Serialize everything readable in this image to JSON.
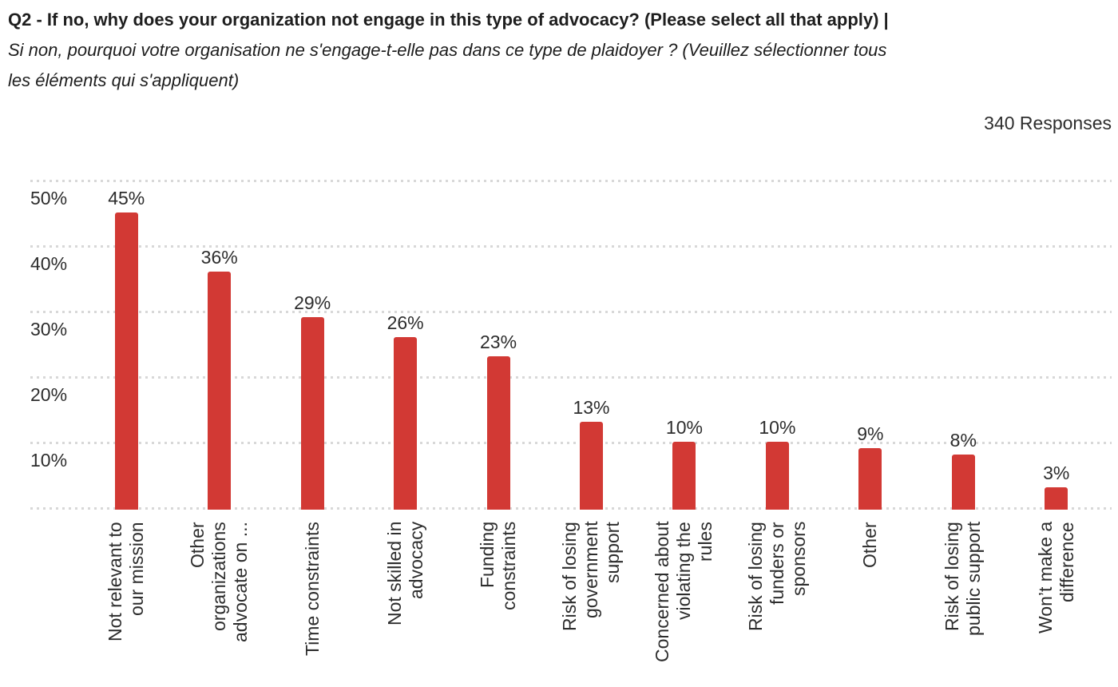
{
  "header": {
    "question_en": "Q2 - If no, why does your organization not engage in this type of advocacy? (Please select all that apply) |",
    "question_fr": "Si non, pourquoi votre organisation ne s'engage-t-elle pas dans ce type de plaidoyer ? (Veuillez sélectionner tous\nles éléments qui s'appliquent)",
    "response_count": "340 Responses"
  },
  "chart_data": {
    "type": "bar",
    "title": "Q2 - If no, why does your organization not engage in this type of advocacy? (Please select all that apply)",
    "categories": [
      "Not relevant to our mission",
      "Other organizations advocate on ...",
      "Time constraints",
      "Not skilled in advocacy",
      "Funding constraints",
      "Risk of losing government support",
      "Concerned about violating the rules",
      "Risk of losing funders or sponsors",
      "Other",
      "Risk of losing public support",
      "Won’t make a difference"
    ],
    "x_tick_display": [
      "Not relevant to\nour mission",
      "Other\norganizations\nadvocate on ...",
      "Time constraints",
      "Not skilled in\nadvocacy",
      "Funding\nconstraints",
      "Risk of losing\ngovernment\nsupport",
      "Concerned about\nviolating the\nrules",
      "Risk of losing\nfunders or\nsponsors",
      "Other",
      "Risk of losing\npublic support",
      "Won’t make a\ndifference"
    ],
    "values": [
      45,
      36,
      29,
      26,
      23,
      13,
      10,
      10,
      9,
      8,
      3
    ],
    "value_labels": [
      "45%",
      "36%",
      "29%",
      "26%",
      "23%",
      "13%",
      "10%",
      "10%",
      "9%",
      "8%",
      "3%"
    ],
    "y_ticks": [
      "50%",
      "40%",
      "30%",
      "20%",
      "10%"
    ],
    "ylim": [
      0,
      50
    ],
    "y_format": "percent",
    "xlabel": "",
    "ylabel": "",
    "legend": "none",
    "grid": "dotted-horizontal",
    "bar_color": "#d23934",
    "grid_color": "#d8d8d8",
    "text_color": "#2d2d2d"
  }
}
